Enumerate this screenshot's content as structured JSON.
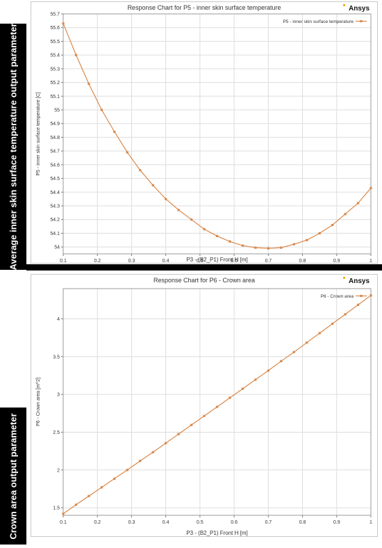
{
  "panels": [
    {
      "side_label": "Average inner skin surface temperature output parameter",
      "logo": "Ansys",
      "chart_data": {
        "type": "line",
        "title": "Response Chart for P5 - inner skin surface temperature",
        "xlabel": "P3 - (B2_P1) Front H  [m]",
        "ylabel": "P5 - inner skin surface temperature  [C]",
        "xlim": [
          0.1,
          1.0
        ],
        "ylim": [
          53.95,
          55.7
        ],
        "xticks": [
          0.1,
          0.2,
          0.3,
          0.4,
          0.5,
          0.6,
          0.7,
          0.8,
          0.9,
          1
        ],
        "xtick_labels": [
          "0.1",
          "0.2",
          "0.3",
          "0.4",
          "0.5",
          "0.6",
          "0.7",
          "0.8",
          "0.9",
          "1"
        ],
        "yticks": [
          54,
          54.1,
          54.2,
          54.3,
          54.4,
          54.5,
          54.6,
          54.7,
          54.8,
          54.9,
          55,
          55.1,
          55.2,
          55.3,
          55.4,
          55.5,
          55.6,
          55.7
        ],
        "ytick_labels": [
          "54",
          "54.1",
          "54.2",
          "54.3",
          "54.4",
          "54.5",
          "54.6",
          "54.7",
          "54.8",
          "54.9",
          "55",
          "55.1",
          "55.2",
          "55.3",
          "55.4",
          "55.5",
          "55.6",
          "55.7"
        ],
        "grid": true,
        "legend_position": "top-right",
        "series": [
          {
            "name": "P5 - inner skin surface temperature",
            "color": "#d9884a",
            "x": [
              0.1,
              0.1375,
              0.175,
              0.2125,
              0.25,
              0.2875,
              0.325,
              0.3625,
              0.4,
              0.4375,
              0.475,
              0.5125,
              0.55,
              0.5875,
              0.625,
              0.6625,
              0.7,
              0.7375,
              0.775,
              0.8125,
              0.85,
              0.8875,
              0.925,
              0.9625,
              1.0
            ],
            "values": [
              55.63,
              55.4,
              55.19,
              55.0,
              54.84,
              54.69,
              54.56,
              54.45,
              54.35,
              54.27,
              54.2,
              54.13,
              54.08,
              54.04,
              54.01,
              53.995,
              53.99,
              53.995,
              54.02,
              54.05,
              54.1,
              54.16,
              54.24,
              54.32,
              54.43
            ]
          }
        ]
      }
    },
    {
      "side_label": "Crown area output parameter",
      "logo": "Ansys",
      "chart_data": {
        "type": "line",
        "title": "Response Chart for P6 - Crown area",
        "xlabel": "P3 - (B2_P1) Front H  [m]",
        "ylabel": "P6 - Crown area  [m^2]",
        "xlim": [
          0.1,
          1.0
        ],
        "ylim": [
          1.4,
          4.4
        ],
        "xticks": [
          0.1,
          0.2,
          0.3,
          0.4,
          0.5,
          0.6,
          0.7,
          0.8,
          0.9,
          1
        ],
        "xtick_labels": [
          "0.1",
          "0.2",
          "0.3",
          "0.4",
          "0.5",
          "0.6",
          "0.7",
          "0.8",
          "0.9",
          "1"
        ],
        "yticks": [
          1.5,
          2,
          2.5,
          3,
          3.5,
          4
        ],
        "ytick_labels": [
          "1.5",
          "2",
          "2.5",
          "3",
          "3.5",
          "4"
        ],
        "grid": true,
        "legend_position": "top-right",
        "series": [
          {
            "name": "P6 - Crown area",
            "color": "#d9884a",
            "x": [
              0.1,
              0.1375,
              0.175,
              0.2125,
              0.25,
              0.2875,
              0.325,
              0.3625,
              0.4,
              0.4375,
              0.475,
              0.5125,
              0.55,
              0.5875,
              0.625,
              0.6625,
              0.7,
              0.7375,
              0.775,
              0.8125,
              0.85,
              0.8875,
              0.925,
              0.9625,
              1.0
            ],
            "values": [
              1.42,
              1.54,
              1.655,
              1.77,
              1.885,
              2.0,
              2.12,
              2.235,
              2.355,
              2.475,
              2.595,
              2.715,
              2.835,
              2.955,
              3.075,
              3.195,
              3.315,
              3.44,
              3.56,
              3.685,
              3.81,
              3.935,
              4.06,
              4.185,
              4.31
            ]
          }
        ]
      }
    }
  ]
}
